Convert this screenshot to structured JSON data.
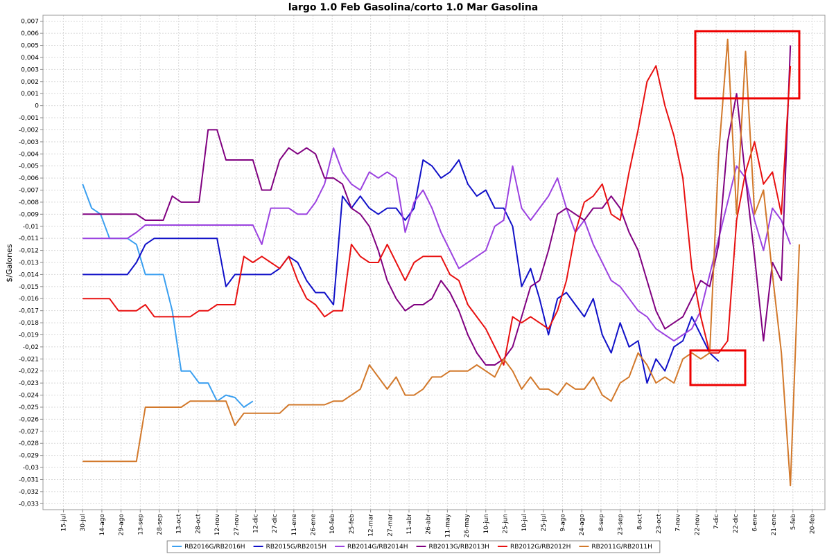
{
  "chart_data": {
    "type": "line",
    "title": "largo 1.0 Feb Gasolina/corto 1.0 Mar Gasolina",
    "y_label": "$/Galones",
    "grid": true,
    "legend": "bottom",
    "xlim": [
      -16,
      595
    ],
    "ylim": [
      -0.0335,
      0.0075
    ],
    "xticks": [
      {
        "value": 0,
        "label": "15-jul"
      },
      {
        "value": 15,
        "label": "30-jul"
      },
      {
        "value": 30,
        "label": "14-ago"
      },
      {
        "value": 45,
        "label": "29-ago"
      },
      {
        "value": 60,
        "label": "13-sep"
      },
      {
        "value": 75,
        "label": "28-sep"
      },
      {
        "value": 90,
        "label": "13-oct"
      },
      {
        "value": 105,
        "label": "28-oct"
      },
      {
        "value": 120,
        "label": "12-nov"
      },
      {
        "value": 135,
        "label": "27-nov"
      },
      {
        "value": 150,
        "label": "12-dic"
      },
      {
        "value": 165,
        "label": "27-dic"
      },
      {
        "value": 180,
        "label": "11-ene"
      },
      {
        "value": 195,
        "label": "26-ene"
      },
      {
        "value": 210,
        "label": "10-feb"
      },
      {
        "value": 225,
        "label": "25-feb"
      },
      {
        "value": 240,
        "label": "12-mar"
      },
      {
        "value": 255,
        "label": "27-mar"
      },
      {
        "value": 270,
        "label": "11-abr"
      },
      {
        "value": 285,
        "label": "26-abr"
      },
      {
        "value": 300,
        "label": "11-may"
      },
      {
        "value": 315,
        "label": "26-may"
      },
      {
        "value": 330,
        "label": "10-jun"
      },
      {
        "value": 345,
        "label": "25-jun"
      },
      {
        "value": 360,
        "label": "10-jul"
      },
      {
        "value": 375,
        "label": "25-jul"
      },
      {
        "value": 390,
        "label": "9-ago"
      },
      {
        "value": 405,
        "label": "24-ago"
      },
      {
        "value": 420,
        "label": "8-sep"
      },
      {
        "value": 435,
        "label": "23-sep"
      },
      {
        "value": 450,
        "label": "8-oct"
      },
      {
        "value": 465,
        "label": "23-oct"
      },
      {
        "value": 480,
        "label": "7-nov"
      },
      {
        "value": 495,
        "label": "22-nov"
      },
      {
        "value": 510,
        "label": "7-dic"
      },
      {
        "value": 525,
        "label": "22-dic"
      },
      {
        "value": 540,
        "label": "6-ene"
      },
      {
        "value": 555,
        "label": "21-ene"
      },
      {
        "value": 570,
        "label": "5-feb"
      },
      {
        "value": 585,
        "label": "20-feb"
      }
    ],
    "yticks": [
      {
        "value": 0.007,
        "label": "0,007"
      },
      {
        "value": 0.006,
        "label": "0,006"
      },
      {
        "value": 0.005,
        "label": "0,005"
      },
      {
        "value": 0.004,
        "label": "0,004"
      },
      {
        "value": 0.003,
        "label": "0,003"
      },
      {
        "value": 0.002,
        "label": "0,002"
      },
      {
        "value": 0.001,
        "label": "0,001"
      },
      0,
      {
        "value": -0.001,
        "label": "-0,001"
      },
      {
        "value": -0.002,
        "label": "-0,002"
      },
      {
        "value": -0.003,
        "label": "-0,003"
      },
      {
        "value": -0.004,
        "label": "-0,004"
      },
      {
        "value": -0.005,
        "label": "-0,005"
      },
      {
        "value": -0.006,
        "label": "-0,006"
      },
      {
        "value": -0.007,
        "label": "-0,007"
      },
      {
        "value": -0.008,
        "label": "-0,008"
      },
      {
        "value": -0.009,
        "label": "-0,009"
      },
      {
        "value": -0.01,
        "label": "-0,01"
      },
      {
        "value": -0.011,
        "label": "-0,011"
      },
      {
        "value": -0.012,
        "label": "-0,012"
      },
      {
        "value": -0.013,
        "label": "-0,013"
      },
      {
        "value": -0.014,
        "label": "-0,014"
      },
      {
        "value": -0.015,
        "label": "-0,015"
      },
      {
        "value": -0.016,
        "label": "-0,016"
      },
      {
        "value": -0.017,
        "label": "-0,017"
      },
      {
        "value": -0.018,
        "label": "-0,018"
      },
      {
        "value": -0.019,
        "label": "-0,019"
      },
      {
        "value": -0.02,
        "label": "-0,02"
      },
      {
        "value": -0.021,
        "label": "-0,021"
      },
      {
        "value": -0.022,
        "label": "-0,022"
      },
      {
        "value": -0.023,
        "label": "-0,023"
      },
      {
        "value": -0.024,
        "label": "-0,024"
      },
      {
        "value": -0.025,
        "label": "-0,025"
      },
      {
        "value": -0.026,
        "label": "-0,026"
      },
      {
        "value": -0.027,
        "label": "-0,027"
      },
      {
        "value": -0.028,
        "label": "-0,028"
      },
      {
        "value": -0.029,
        "label": "-0,029"
      },
      {
        "value": -0.03,
        "label": "-0,03"
      },
      {
        "value": -0.031,
        "label": "-0,031"
      },
      {
        "value": -0.032,
        "label": "-0,032"
      },
      {
        "value": -0.033,
        "label": "-0,033"
      }
    ],
    "x": [
      15,
      22,
      29,
      36,
      43,
      50,
      57,
      64,
      71,
      78,
      85,
      92,
      99,
      106,
      113,
      120,
      127,
      134,
      141,
      148,
      155,
      162,
      169,
      176,
      183,
      190,
      197,
      204,
      211,
      218,
      225,
      232,
      239,
      246,
      253,
      260,
      267,
      274,
      281,
      288,
      295,
      302,
      309,
      316,
      323,
      330,
      337,
      344,
      351,
      358,
      365,
      372,
      379,
      386,
      393,
      400,
      407,
      414,
      421,
      428,
      435,
      442,
      449,
      456,
      463,
      470,
      477,
      484,
      491,
      498,
      505,
      512,
      519,
      526,
      533,
      540,
      547,
      554,
      561,
      568,
      575
    ],
    "series": [
      {
        "name": "RB2016G/RB2016H",
        "color": "#3a9ff0",
        "values": [
          -0.0065,
          -0.0085,
          -0.009,
          -0.011,
          -0.011,
          -0.011,
          -0.0115,
          -0.014,
          -0.014,
          -0.014,
          -0.017,
          -0.022,
          -0.022,
          -0.023,
          -0.023,
          -0.0245,
          -0.024,
          -0.0242,
          -0.025,
          -0.0245,
          null,
          null,
          null,
          null,
          null,
          null,
          null,
          null,
          null,
          null,
          null,
          null,
          null,
          null,
          null,
          null,
          null,
          null,
          null,
          null,
          null,
          null,
          null,
          null,
          null,
          null,
          null,
          null,
          null,
          null,
          null,
          null,
          null,
          null,
          null,
          null,
          null,
          null,
          null,
          null,
          null,
          null,
          null,
          null,
          null,
          null,
          null,
          null,
          null,
          null,
          null,
          null,
          null,
          null,
          null,
          null,
          null,
          null,
          null,
          null,
          null
        ]
      },
      {
        "name": "RB2015G/RB2015H",
        "color": "#1010c8",
        "values": [
          -0.014,
          -0.014,
          -0.014,
          -0.014,
          -0.014,
          -0.014,
          -0.013,
          -0.0115,
          -0.011,
          -0.011,
          -0.011,
          -0.011,
          -0.011,
          -0.011,
          -0.011,
          -0.011,
          -0.015,
          -0.014,
          -0.014,
          -0.014,
          -0.014,
          -0.014,
          -0.0135,
          -0.0125,
          -0.013,
          -0.0145,
          -0.0155,
          -0.0155,
          -0.0165,
          -0.0075,
          -0.0085,
          -0.0075,
          -0.0085,
          -0.009,
          -0.0085,
          -0.0085,
          -0.0095,
          -0.0085,
          -0.0045,
          -0.005,
          -0.006,
          -0.0055,
          -0.0045,
          -0.0065,
          -0.0075,
          -0.007,
          -0.0085,
          -0.0085,
          -0.01,
          -0.015,
          -0.0135,
          -0.016,
          -0.019,
          -0.016,
          -0.0155,
          -0.0165,
          -0.0175,
          -0.016,
          -0.019,
          -0.0205,
          -0.018,
          -0.02,
          -0.0195,
          -0.023,
          -0.021,
          -0.022,
          -0.02,
          -0.0195,
          -0.0175,
          -0.019,
          -0.0205,
          -0.0212,
          null,
          null,
          null,
          null,
          null,
          null,
          null,
          null,
          null
        ]
      },
      {
        "name": "RB2014G/RB2014H",
        "color": "#9b42e0",
        "values": [
          -0.011,
          -0.011,
          -0.011,
          -0.011,
          -0.011,
          -0.011,
          -0.0105,
          -0.0099,
          -0.0099,
          -0.0099,
          -0.0099,
          -0.0099,
          -0.0099,
          -0.0099,
          -0.0099,
          -0.0099,
          -0.0099,
          -0.0099,
          -0.0099,
          -0.0099,
          -0.0115,
          -0.0085,
          -0.0085,
          -0.0085,
          -0.009,
          -0.009,
          -0.008,
          -0.0065,
          -0.0035,
          -0.0055,
          -0.0065,
          -0.007,
          -0.0055,
          -0.006,
          -0.0055,
          -0.006,
          -0.0105,
          -0.008,
          -0.007,
          -0.0085,
          -0.0105,
          -0.012,
          -0.0135,
          -0.013,
          -0.0125,
          -0.012,
          -0.01,
          -0.0095,
          -0.005,
          -0.0085,
          -0.0095,
          -0.0085,
          -0.0075,
          -0.006,
          -0.0085,
          -0.0105,
          -0.0095,
          -0.0115,
          -0.013,
          -0.0145,
          -0.015,
          -0.016,
          -0.017,
          -0.0175,
          -0.0185,
          -0.019,
          -0.0195,
          -0.019,
          -0.0185,
          -0.017,
          -0.014,
          -0.011,
          -0.008,
          -0.005,
          -0.006,
          -0.0095,
          -0.012,
          -0.0085,
          -0.0095,
          -0.0115,
          null
        ]
      },
      {
        "name": "RB2013G/RB2013H",
        "color": "#800080",
        "values": [
          -0.009,
          -0.009,
          -0.009,
          -0.009,
          -0.009,
          -0.009,
          -0.009,
          -0.0095,
          -0.0095,
          -0.0095,
          -0.0075,
          -0.008,
          -0.008,
          -0.008,
          -0.002,
          -0.002,
          -0.0045,
          -0.0045,
          -0.0045,
          -0.0045,
          -0.007,
          -0.007,
          -0.0045,
          -0.0035,
          -0.004,
          -0.0035,
          -0.004,
          -0.006,
          -0.006,
          -0.0065,
          -0.0085,
          -0.009,
          -0.01,
          -0.012,
          -0.0145,
          -0.016,
          -0.017,
          -0.0165,
          -0.0165,
          -0.016,
          -0.0145,
          -0.0155,
          -0.017,
          -0.019,
          -0.0205,
          -0.0215,
          -0.0215,
          -0.021,
          -0.02,
          -0.0175,
          -0.015,
          -0.0145,
          -0.012,
          -0.009,
          -0.0085,
          -0.009,
          -0.0095,
          -0.0085,
          -0.0085,
          -0.0075,
          -0.0085,
          -0.0105,
          -0.012,
          -0.0145,
          -0.017,
          -0.0185,
          -0.018,
          -0.0175,
          -0.016,
          -0.0145,
          -0.015,
          -0.0115,
          -0.003,
          0.001,
          -0.006,
          -0.0125,
          -0.0195,
          -0.013,
          -0.0145,
          0.005,
          null
        ]
      },
      {
        "name": "RB2012G/RB2012H",
        "color": "#e81010",
        "values": [
          -0.016,
          -0.016,
          -0.016,
          -0.016,
          -0.017,
          -0.017,
          -0.017,
          -0.0165,
          -0.0175,
          -0.0175,
          -0.0175,
          -0.0175,
          -0.0175,
          -0.017,
          -0.017,
          -0.0165,
          -0.0165,
          -0.0165,
          -0.0125,
          -0.013,
          -0.0125,
          -0.013,
          -0.0135,
          -0.0125,
          -0.0145,
          -0.016,
          -0.0165,
          -0.0175,
          -0.017,
          -0.017,
          -0.0115,
          -0.0125,
          -0.013,
          -0.013,
          -0.0115,
          -0.013,
          -0.0145,
          -0.013,
          -0.0125,
          -0.0125,
          -0.0125,
          -0.014,
          -0.0145,
          -0.0165,
          -0.0175,
          -0.0185,
          -0.02,
          -0.0215,
          -0.0175,
          -0.018,
          -0.0175,
          -0.018,
          -0.0185,
          -0.017,
          -0.0145,
          -0.0105,
          -0.008,
          -0.0075,
          -0.0065,
          -0.009,
          -0.0095,
          -0.0055,
          -0.002,
          0.002,
          0.0033,
          0,
          -0.0025,
          -0.006,
          -0.0135,
          -0.0175,
          -0.0205,
          -0.0205,
          -0.0195,
          -0.0095,
          -0.0055,
          -0.003,
          -0.0065,
          -0.0055,
          -0.009,
          0.0033,
          null
        ]
      },
      {
        "name": "RB2011G/RB2011H",
        "color": "#d2782a",
        "values": [
          -0.0295,
          -0.0295,
          -0.0295,
          -0.0295,
          -0.0295,
          -0.0295,
          -0.0295,
          -0.025,
          -0.025,
          -0.025,
          -0.025,
          -0.025,
          -0.0245,
          -0.0245,
          -0.0245,
          -0.0245,
          -0.0245,
          -0.0265,
          -0.0255,
          -0.0255,
          -0.0255,
          -0.0255,
          -0.0255,
          -0.0248,
          -0.0248,
          -0.0248,
          -0.0248,
          -0.0248,
          -0.0245,
          -0.0245,
          -0.024,
          -0.0235,
          -0.0215,
          -0.0225,
          -0.0235,
          -0.0225,
          -0.024,
          -0.024,
          -0.0235,
          -0.0225,
          -0.0225,
          -0.022,
          -0.022,
          -0.022,
          -0.0215,
          -0.022,
          -0.0225,
          -0.021,
          -0.022,
          -0.0235,
          -0.0225,
          -0.0235,
          -0.0235,
          -0.024,
          -0.023,
          -0.0235,
          -0.0235,
          -0.0225,
          -0.024,
          -0.0245,
          -0.023,
          -0.0225,
          -0.0205,
          -0.0215,
          -0.023,
          -0.0225,
          -0.023,
          -0.021,
          -0.0205,
          -0.021,
          -0.0205,
          -0.004,
          0.0055,
          -0.009,
          0.0045,
          -0.009,
          -0.007,
          -0.014,
          -0.0205,
          -0.0315,
          -0.0115
        ]
      }
    ]
  }
}
